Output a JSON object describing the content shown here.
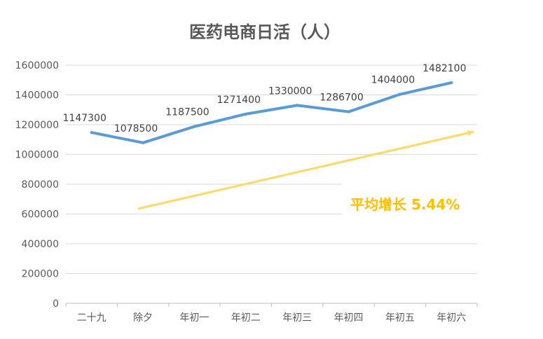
{
  "chart_data": {
    "type": "line",
    "title": "医药电商日活（人）",
    "xlabel": "",
    "ylabel": "",
    "categories": [
      "二十九",
      "除夕",
      "年初一",
      "年初二",
      "年初三",
      "年初四",
      "年初五",
      "年初六"
    ],
    "series": [
      {
        "values": [
          1147300,
          1078500,
          1187500,
          1271400,
          1330000,
          1286700,
          1404000,
          1482100
        ],
        "color": "#5B9BD5"
      }
    ],
    "ylim": [
      0,
      1600000
    ],
    "yticks": [
      0,
      200000,
      400000,
      600000,
      800000,
      1000000,
      1200000,
      1400000,
      1600000
    ],
    "grid": true,
    "legend": "none",
    "annotation": {
      "text": "平均增长 5.44%",
      "color": "#FFC000",
      "arrow_color": "#FFD966"
    }
  }
}
